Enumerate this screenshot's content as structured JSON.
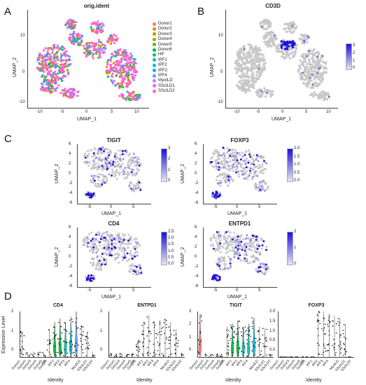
{
  "panels": {
    "A": {
      "label": "A",
      "title": "orig.ident",
      "xlabel": "UMAP_1",
      "ylabel": "UMAP_2",
      "xticks": [
        "-10",
        "-5",
        "0",
        "5",
        "10"
      ],
      "yticks": [
        "10",
        "0",
        "-10"
      ],
      "legend": [
        {
          "name": "Donor1",
          "color": "#F8766D"
        },
        {
          "name": "Donor2",
          "color": "#E58700"
        },
        {
          "name": "Donor3",
          "color": "#C99800"
        },
        {
          "name": "Donor4",
          "color": "#A3A500"
        },
        {
          "name": "Donor5",
          "color": "#6BB100"
        },
        {
          "name": "Donor6",
          "color": "#00BA38"
        },
        {
          "name": "HP",
          "color": "#00BF7D"
        },
        {
          "name": "IPF1",
          "color": "#00C0AF"
        },
        {
          "name": "IPF2",
          "color": "#00BCD8"
        },
        {
          "name": "IPF3",
          "color": "#00B0F6"
        },
        {
          "name": "IPF4",
          "color": "#619CFF"
        },
        {
          "name": "MyoILD",
          "color": "#B983FF"
        },
        {
          "name": "SScILD1",
          "color": "#E76BF3"
        },
        {
          "name": "SScILD2",
          "color": "#FD61D1"
        }
      ]
    },
    "B": {
      "label": "B",
      "title": "CD3D",
      "xlabel": "UMAP_1",
      "ylabel": "UMAP_2",
      "xticks": [
        "-10",
        "-5",
        "0",
        "5",
        "10"
      ],
      "yticks": [
        "10",
        "0",
        "-10"
      ],
      "colorbar_ticks": [
        "3",
        "2",
        "1",
        "0"
      ]
    },
    "C": {
      "label": "C",
      "subplots": [
        {
          "title": "TIGIT",
          "xlabel": "UMAP_1",
          "ylabel": "UMAP_2",
          "xticks": [
            "-5",
            "0",
            "5"
          ],
          "yticks": [
            "6",
            "4",
            "2",
            "0",
            "-2",
            "-4",
            "-6"
          ],
          "colorbar_ticks": [
            "3",
            "2",
            "1",
            "0"
          ]
        },
        {
          "title": "FOXP3",
          "xlabel": "UMAP_1",
          "ylabel": "UMAP_2",
          "xticks": [
            "-5",
            "0",
            "5"
          ],
          "yticks": [
            "6",
            "4",
            "2",
            "0",
            "-2",
            "-4",
            "-6"
          ],
          "colorbar_ticks": [
            "2.0",
            "1.5",
            "1.0",
            "0.5",
            "0.0"
          ]
        },
        {
          "title": "CD4",
          "xlabel": "UMAP_1",
          "ylabel": "UMAP_2",
          "xticks": [
            "-5",
            "0",
            "5"
          ],
          "yticks": [
            "6",
            "4",
            "2",
            "0",
            "-2",
            "-4",
            "-6"
          ],
          "colorbar_ticks": [
            "2.5",
            "2.0",
            "1.5",
            "1.0",
            "0.5",
            "0.0"
          ]
        },
        {
          "title": "ENTPD1",
          "xlabel": "UMAP_1",
          "ylabel": "UMAP_2",
          "xticks": [
            "-5",
            "0",
            "5"
          ],
          "yticks": [
            "6",
            "4",
            "2",
            "0",
            "-2",
            "-4",
            "-6"
          ],
          "colorbar_ticks": [
            "2",
            "1",
            "0"
          ]
        }
      ]
    },
    "D": {
      "label": "D",
      "ylabel": "Expression Level",
      "xlabel": "Identity",
      "categories": [
        "Donor1",
        "Donor2",
        "Donor3",
        "Donor4",
        "Donor5",
        "Donor6",
        "HP",
        "IPF1",
        "IPF2",
        "IPF3",
        "IPF4",
        "MyoILD",
        "SScILD1",
        "SScILD2"
      ]
    }
  },
  "chart_data": [
    {
      "type": "scatter",
      "title": "orig.ident",
      "xlabel": "UMAP_1",
      "ylabel": "UMAP_2",
      "xlim": [
        -13,
        13
      ],
      "ylim": [
        -13,
        16
      ],
      "series": [
        {
          "name": "Donor1"
        },
        {
          "name": "Donor2"
        },
        {
          "name": "Donor3"
        },
        {
          "name": "Donor4"
        },
        {
          "name": "Donor5"
        },
        {
          "name": "Donor6"
        },
        {
          "name": "HP"
        },
        {
          "name": "IPF1"
        },
        {
          "name": "IPF2"
        },
        {
          "name": "IPF3"
        },
        {
          "name": "IPF4"
        },
        {
          "name": "MyoILD"
        },
        {
          "name": "SScILD1"
        },
        {
          "name": "SScILD2"
        }
      ]
    },
    {
      "type": "scatter",
      "title": "CD3D",
      "xlabel": "UMAP_1",
      "ylabel": "UMAP_2",
      "color_range": [
        0,
        3
      ]
    },
    {
      "type": "scatter",
      "title": "TIGIT",
      "xlabel": "UMAP_1",
      "ylabel": "UMAP_2",
      "color_range": [
        0,
        3
      ]
    },
    {
      "type": "scatter",
      "title": "FOXP3",
      "xlabel": "UMAP_1",
      "ylabel": "UMAP_2",
      "color_range": [
        0,
        2.0
      ]
    },
    {
      "type": "scatter",
      "title": "CD4",
      "xlabel": "UMAP_1",
      "ylabel": "UMAP_2",
      "color_range": [
        0,
        2.5
      ]
    },
    {
      "type": "scatter",
      "title": "ENTPD1",
      "xlabel": "UMAP_1",
      "ylabel": "UMAP_2",
      "color_range": [
        0,
        2
      ]
    },
    {
      "type": "violin",
      "title": "CD4",
      "ylabel": "Expression Level",
      "xlabel": "Identity",
      "yticks": [
        "2",
        "1",
        "0"
      ],
      "categories": [
        "Donor1",
        "Donor2",
        "Donor3",
        "Donor4",
        "Donor5",
        "Donor6",
        "HP",
        "IPF1",
        "IPF2",
        "IPF3",
        "IPF4",
        "MyoILD",
        "SScILD1",
        "SScILD2"
      ],
      "max": [
        1.5,
        0.3,
        0.3,
        0.3,
        0.3,
        1.6,
        2.0,
        2.2,
        2.0,
        2.3,
        2.6,
        1.8,
        1.4,
        0.3
      ]
    },
    {
      "type": "violin",
      "title": "ENTPD1",
      "xlabel": "Identity",
      "yticks": [
        "2",
        "1",
        "0"
      ],
      "categories": [
        "Donor1",
        "Donor2",
        "Donor3",
        "Donor4",
        "Donor5",
        "Donor6",
        "HP",
        "IPF1",
        "IPF2",
        "IPF3",
        "IPF4",
        "MyoILD",
        "SScILD1",
        "SScILD2"
      ],
      "max": [
        0.2,
        0.2,
        0.2,
        0.2,
        0.2,
        1.0,
        2.0,
        2.4,
        2.0,
        2.1,
        2.2,
        2.0,
        1.6,
        0.2
      ]
    },
    {
      "type": "violin",
      "title": "TIGIT",
      "xlabel": "Identity",
      "yticks": [
        "3",
        "2",
        "1",
        "0"
      ],
      "categories": [
        "Donor1",
        "Donor2",
        "Donor3",
        "Donor4",
        "Donor5",
        "Donor6",
        "HP",
        "IPF1",
        "IPF2",
        "IPF3",
        "IPF4",
        "MyoILD",
        "SScILD1",
        "SScILD2"
      ],
      "max": [
        2.8,
        0.2,
        0.2,
        0.2,
        0.2,
        2.0,
        2.2,
        2.4,
        2.0,
        2.2,
        2.6,
        2.0,
        1.9,
        0.2
      ]
    },
    {
      "type": "violin",
      "title": "FOXP3",
      "xlabel": "Identity",
      "yticks": [
        "2.0",
        "1.5",
        "1.0",
        "0.5",
        "0.0"
      ],
      "categories": [
        "Donor1",
        "Donor2",
        "Donor3",
        "Donor4",
        "Donor5",
        "Donor6",
        "HP",
        "IPF1",
        "IPF2",
        "IPF3",
        "IPF4",
        "MyoILD",
        "SScILD1",
        "SScILD2"
      ],
      "max": [
        0.0,
        0.0,
        0.0,
        0.0,
        0.0,
        0.0,
        0.0,
        2.2,
        2.2,
        2.1,
        2.0,
        1.9,
        1.6,
        0.0
      ]
    }
  ],
  "colors": {
    "gray_cell": "#c8c8c8",
    "low": "#e6e6f0",
    "high": "#1f10d8",
    "violin_cd4": [
      "#00BA38",
      "#00C0AF",
      "#619CFF"
    ],
    "violin_tigit": [
      "#F8766D",
      "#00BA38",
      "#00C0AF"
    ]
  }
}
